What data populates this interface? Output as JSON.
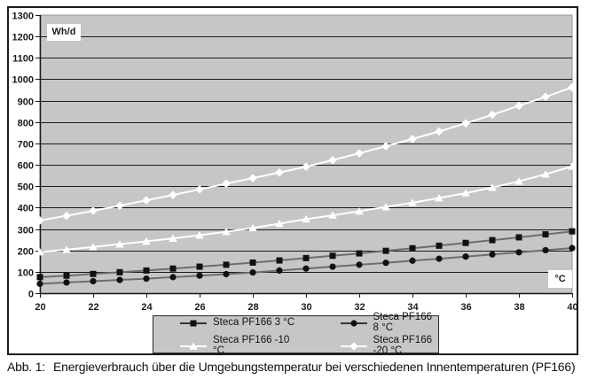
{
  "figure": {
    "y_axis_unit_label": "Wh/d",
    "x_axis_unit_label": "°C",
    "caption_label": "Abb. 1:",
    "caption_text": "Energieverbrauch über die Umgebungstemperatur bei verschiedenen Innentemperaturen (PF166)"
  },
  "colors": {
    "plot_background": "#c6c6c6",
    "plot_edge": "#989898",
    "gridline": "#1a1a1a",
    "axis": "#1a1a1a",
    "frame_border": "#1c1c1c",
    "dark_series_line": "#6e6e6e",
    "dark_series_marker": "#111111",
    "light_series": "#ffffff"
  },
  "chart_data": {
    "type": "line",
    "title": "",
    "xlabel": "°C",
    "ylabel": "Wh/d",
    "xlim": [
      20,
      40
    ],
    "ylim": [
      0,
      1300
    ],
    "x_ticks": [
      20,
      22,
      24,
      26,
      28,
      30,
      32,
      34,
      36,
      38,
      40
    ],
    "y_ticks": [
      0,
      100,
      200,
      300,
      400,
      500,
      600,
      700,
      800,
      900,
      1000,
      1100,
      1200,
      1300
    ],
    "grid": "horizontal",
    "legend_position": "bottom",
    "x": [
      20,
      21,
      22,
      23,
      24,
      25,
      26,
      27,
      28,
      29,
      30,
      31,
      32,
      33,
      34,
      35,
      36,
      37,
      38,
      39,
      40
    ],
    "series": [
      {
        "name": "Steca PF166 3 °C",
        "marker": "square",
        "line_color": "#6e6e6e",
        "marker_color": "#111111",
        "values": [
          75,
          82,
          90,
          98,
          106,
          115,
          124,
          133,
          143,
          153,
          164,
          175,
          186,
          198,
          210,
          222,
          235,
          248,
          261,
          275,
          289
        ]
      },
      {
        "name": "Steca PF166 8 °C",
        "marker": "circle",
        "line_color": "#6e6e6e",
        "marker_color": "#111111",
        "values": [
          44,
          50,
          56,
          62,
          68,
          75,
          82,
          89,
          97,
          106,
          115,
          124,
          133,
          142,
          152,
          161,
          171,
          181,
          191,
          201,
          211
        ]
      },
      {
        "name": "Steca PF166 -10 °C",
        "marker": "triangle",
        "line_color": "#ffffff",
        "marker_color": "#ffffff",
        "values": [
          192,
          204,
          216,
          229,
          242,
          256,
          271,
          287,
          305,
          325,
          346,
          364,
          383,
          403,
          423,
          445,
          468,
          494,
          523,
          556,
          593
        ]
      },
      {
        "name": "Steca PF166 -20 °C",
        "marker": "diamond",
        "line_color": "#ffffff",
        "marker_color": "#ffffff",
        "values": [
          340,
          362,
          385,
          409,
          434,
          459,
          485,
          512,
          538,
          564,
          591,
          622,
          654,
          687,
          721,
          756,
          794,
          834,
          876,
          918,
          962
        ]
      }
    ]
  }
}
